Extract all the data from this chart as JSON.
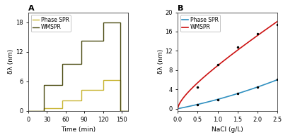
{
  "panel_A": {
    "title": "A",
    "xlabel": "Time (min)",
    "ylabel": "δλ (nm)",
    "xlim": [
      0,
      160
    ],
    "ylim": [
      0,
      20
    ],
    "yticks": [
      0,
      6,
      12,
      18
    ],
    "xticks": [
      0,
      30,
      60,
      90,
      120,
      150
    ],
    "phase_spr": {
      "color": "#c8b432",
      "label": "Phase SPR",
      "x": [
        0,
        25,
        25,
        55,
        55,
        85,
        85,
        120,
        120,
        148,
        148,
        160
      ],
      "y": [
        0,
        0,
        0.5,
        0.5,
        2.1,
        2.1,
        4.3,
        4.3,
        6.3,
        6.3,
        0.0,
        0.0
      ]
    },
    "wmspr": {
      "color": "#4a4a10",
      "label": "WMSPR",
      "x": [
        0,
        25,
        25,
        55,
        55,
        85,
        85,
        120,
        120,
        148,
        148,
        160
      ],
      "y": [
        0,
        0,
        5.3,
        5.3,
        9.6,
        9.6,
        14.2,
        14.2,
        18.0,
        18.0,
        0.0,
        0.0
      ]
    }
  },
  "panel_B": {
    "title": "B",
    "xlabel": "NaCl (g/L)",
    "ylabel": "δλ (nm)",
    "xlim": [
      0,
      2.5
    ],
    "ylim": [
      -0.5,
      20
    ],
    "yticks": [
      0,
      4,
      8,
      12,
      16,
      20
    ],
    "xticks": [
      0,
      0.5,
      1.0,
      1.5,
      2.0,
      2.5
    ],
    "phase_spr": {
      "color": "#3090c0",
      "label": "Phase SPR",
      "x": [
        0,
        0.5,
        1.0,
        1.5,
        2.0,
        2.5
      ],
      "y": [
        0.0,
        0.8,
        1.9,
        3.2,
        4.4,
        6.0
      ]
    },
    "wmspr": {
      "color": "#cc1111",
      "label": "WMSPR",
      "x": [
        0,
        0.5,
        1.0,
        1.5,
        2.0,
        2.5
      ],
      "y": [
        0.0,
        4.5,
        9.2,
        12.8,
        15.5,
        17.5
      ]
    }
  },
  "background_color": "#ffffff"
}
